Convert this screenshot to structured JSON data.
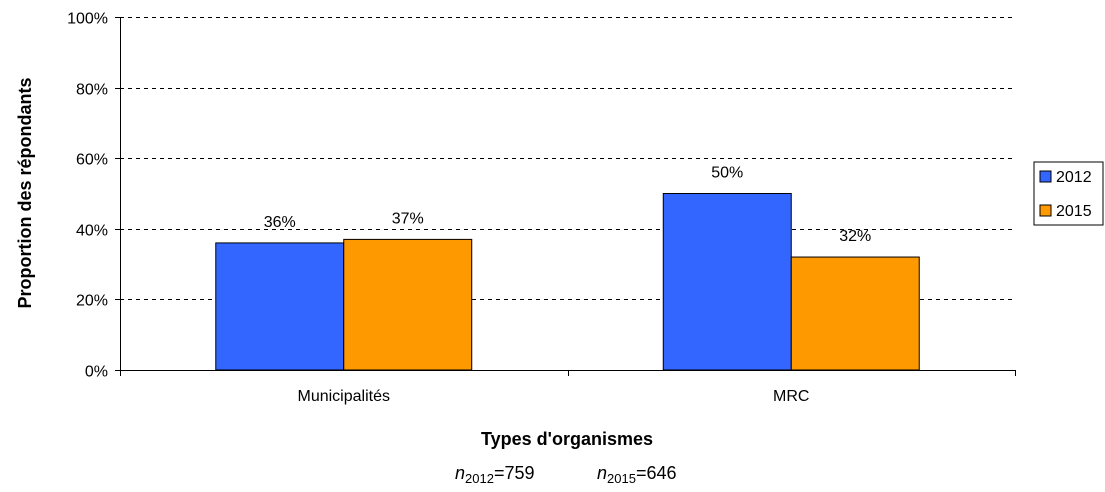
{
  "chart_data": {
    "type": "bar",
    "title": "",
    "xlabel": "Types d'organismes",
    "ylabel": "Proportion des répondants",
    "categories": [
      "Municipalités",
      "MRC"
    ],
    "series": [
      {
        "name": "2012",
        "values": [
          36,
          50
        ],
        "color": "#3366ff"
      },
      {
        "name": "2015",
        "values": [
          37,
          32
        ],
        "color": "#ff9900"
      }
    ],
    "data_labels": [
      [
        "36%",
        "50%"
      ],
      [
        "37%",
        "32%"
      ]
    ],
    "ylim": [
      0,
      100
    ],
    "yticks": [
      0,
      20,
      40,
      60,
      80,
      100
    ],
    "ytick_labels": [
      "0%",
      "20%",
      "40%",
      "60%",
      "80%",
      "100%"
    ],
    "grid": "horizontal dashed",
    "legend": "right"
  },
  "footnote": {
    "n_var": "n",
    "sample_1": {
      "year": "2012",
      "value": "=759"
    },
    "sample_2": {
      "year": "2015",
      "value": "=646"
    }
  }
}
